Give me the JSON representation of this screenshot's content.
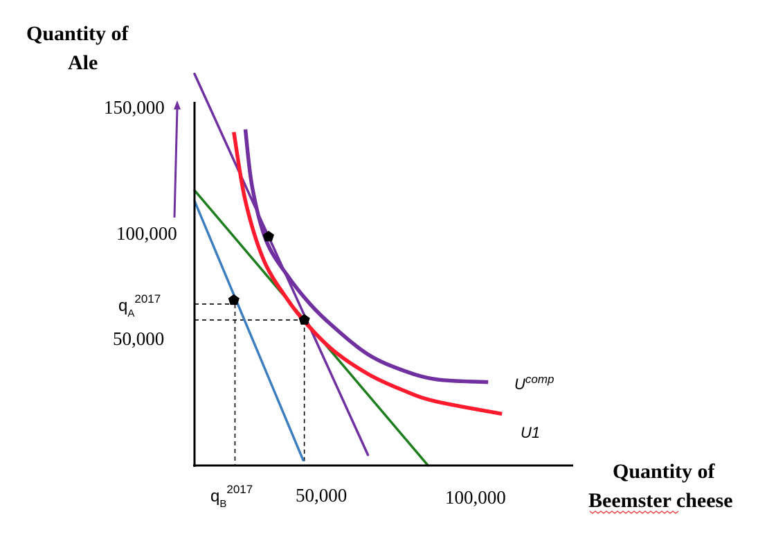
{
  "chart_data": {
    "type": "line",
    "ylabel_line1": "Quantity of",
    "ylabel_line2": "Ale",
    "xlabel_line1": "Quantity of",
    "xlabel_line2": "Beemster cheese",
    "x_ticks": [
      "50,000",
      "100,000"
    ],
    "y_ticks": [
      "150,000",
      "100,000",
      "50,000"
    ],
    "xlim": [
      0,
      160000
    ],
    "ylim": [
      0,
      150000
    ],
    "q_b_label": {
      "base": "q",
      "sub": "B",
      "sup": "2017"
    },
    "q_a_label": {
      "base": "q",
      "sub": "A",
      "sup": "2017"
    },
    "q_a_value": 61000,
    "q_b_value": 17500,
    "colors": {
      "axis": "#000000",
      "budget_2017": "#3d7ebf",
      "budget_new": "#1e7d1e",
      "budget_comp": "#7030a0",
      "u1": "#ff1a2e",
      "ucomp": "#7030a0",
      "points": "#000000",
      "arrow": "#7030a0"
    },
    "lines": [
      {
        "key": "budget_2017",
        "x": [
          0,
          47000
        ],
        "y": [
          100000,
          2000
        ]
      },
      {
        "key": "budget_new",
        "x": [
          0,
          101000
        ],
        "y": [
          104000,
          0
        ]
      },
      {
        "key": "budget_comp",
        "x": [
          0,
          75000
        ],
        "y": [
          148000,
          4000
        ]
      }
    ],
    "curves": [
      {
        "key": "u1",
        "label": "U1",
        "x": [
          17000,
          22000,
          30000,
          40000,
          48500,
          60000,
          75000,
          90000,
          104000,
          133000
        ],
        "y": [
          126000,
          100000,
          77500,
          63000,
          53500,
          43500,
          34600,
          28500,
          24300,
          19500
        ]
      },
      {
        "key": "ucomp",
        "label_base": "U",
        "label_sup": "comp",
        "x": [
          22000,
          25000,
          31000,
          40000,
          50000,
          60000,
          75000,
          90000,
          105000,
          127000
        ],
        "y": [
          127000,
          105000,
          85000,
          72000,
          61000,
          52500,
          42000,
          36000,
          32500,
          31500
        ]
      }
    ],
    "points": [
      {
        "x": 17000,
        "y": 62500
      },
      {
        "x": 32000,
        "y": 86500
      },
      {
        "x": 47500,
        "y": 55000
      }
    ],
    "dashed_guides": [
      {
        "x": 47500,
        "y": 55000
      },
      {
        "x": 17500,
        "y": 61000
      }
    ]
  }
}
